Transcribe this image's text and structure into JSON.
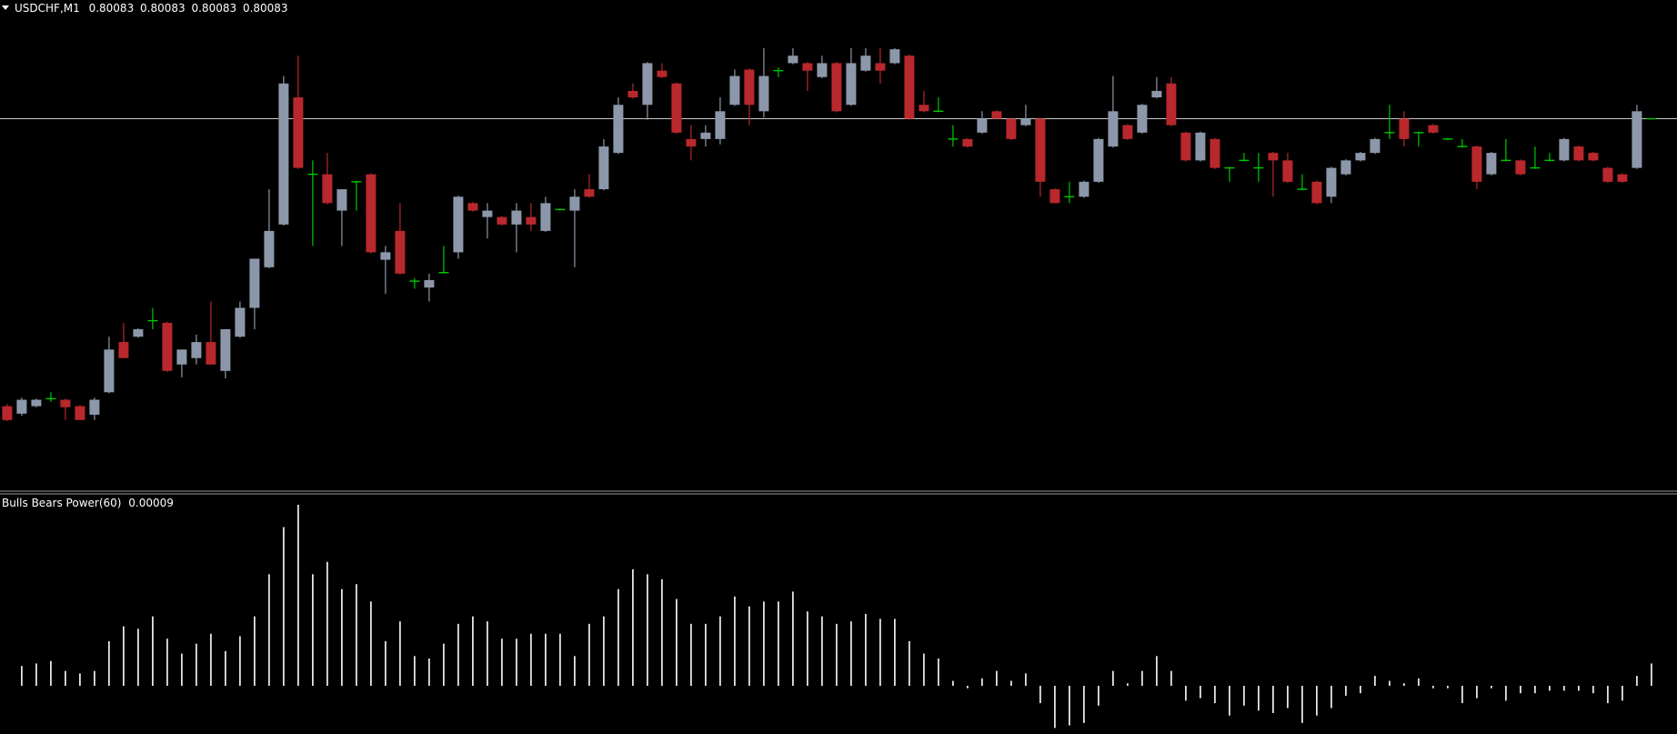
{
  "chart_data": {
    "type": "candlestick",
    "symbol": "USDCHF,M1",
    "header_values": [
      0.80083,
      0.80083,
      0.80083,
      0.80083
    ],
    "price_line": 0.80083,
    "colors": {
      "up": "#8c98aa",
      "down": "#b8282c",
      "doji": "#00c800",
      "price_line": "#c8c8c8"
    },
    "open": [
      0.79814,
      0.79807,
      0.79814,
      0.79821,
      0.7982,
      0.79814,
      0.79806,
      0.79827,
      0.79874,
      0.79879,
      0.79894,
      0.79892,
      0.79853,
      0.79859,
      0.79874,
      0.79847,
      0.79879,
      0.79906,
      0.79944,
      0.79984,
      0.80103,
      0.80031,
      0.80031,
      0.79997,
      0.80024,
      0.80031,
      0.79951,
      0.79978,
      0.79931,
      0.79925,
      0.79939,
      0.79958,
      0.80004,
      0.79991,
      0.79991,
      0.79984,
      0.79991,
      0.79978,
      0.79998,
      0.79997,
      0.80017,
      0.80017,
      0.80051,
      0.80109,
      0.80096,
      0.80128,
      0.80116,
      0.80064,
      0.80064,
      0.80064,
      0.80096,
      0.80129,
      0.8009,
      0.80128,
      0.80135,
      0.80135,
      0.80122,
      0.80135,
      0.80096,
      0.80128,
      0.80135,
      0.80135,
      0.80142,
      0.80096,
      0.8009,
      0.80064,
      0.80064,
      0.8007,
      0.8009,
      0.80083,
      0.80077,
      0.80083,
      0.80017,
      0.8001,
      0.8001,
      0.80024,
      0.80057,
      0.80077,
      0.8007,
      0.80103,
      0.80116,
      0.8007,
      0.80044,
      0.80064,
      0.80037,
      0.80044,
      0.80037,
      0.80051,
      0.80044,
      0.80017,
      0.80024,
      0.8001,
      0.80031,
      0.80044,
      0.80051,
      0.8007,
      0.80083,
      0.8007,
      0.80077,
      0.80064,
      0.80057,
      0.80057,
      0.80031,
      0.80044,
      0.80044,
      0.80037,
      0.80044,
      0.80044,
      0.80057,
      0.80051,
      0.80037,
      0.80031,
      0.80037,
      0.80083
    ],
    "high": [
      0.79816,
      0.79822,
      0.79821,
      0.79827,
      0.79821,
      0.79815,
      0.79822,
      0.79879,
      0.79892,
      0.79887,
      0.79906,
      0.79893,
      0.79867,
      0.79881,
      0.79912,
      0.79886,
      0.79912,
      0.79952,
      0.80017,
      0.80123,
      0.80142,
      0.80044,
      0.80051,
      0.80017,
      0.80025,
      0.80032,
      0.79964,
      0.80004,
      0.79934,
      0.79938,
      0.79964,
      0.80011,
      0.80005,
      0.80004,
      0.79992,
      0.80004,
      0.80004,
      0.8001,
      0.79999,
      0.80017,
      0.80031,
      0.80064,
      0.80103,
      0.80116,
      0.80136,
      0.80135,
      0.80117,
      0.80077,
      0.80077,
      0.80103,
      0.80129,
      0.8013,
      0.80149,
      0.80131,
      0.80149,
      0.80136,
      0.80142,
      0.80136,
      0.80149,
      0.80149,
      0.80149,
      0.80149,
      0.80143,
      0.80109,
      0.80103,
      0.80077,
      0.80065,
      0.8009,
      0.80091,
      0.80084,
      0.80096,
      0.80084,
      0.80018,
      0.80024,
      0.80025,
      0.80065,
      0.80123,
      0.80078,
      0.80097,
      0.80122,
      0.80122,
      0.80071,
      0.80071,
      0.80065,
      0.80038,
      0.80051,
      0.80051,
      0.80052,
      0.80051,
      0.80031,
      0.80025,
      0.80038,
      0.80045,
      0.80052,
      0.80065,
      0.80096,
      0.8009,
      0.80071,
      0.80078,
      0.80065,
      0.80064,
      0.80058,
      0.80052,
      0.80064,
      0.80045,
      0.80057,
      0.80051,
      0.80065,
      0.80058,
      0.80052,
      0.80038,
      0.80032,
      0.80096,
      0.80083
    ],
    "low": [
      0.798,
      0.79805,
      0.79813,
      0.79818,
      0.79801,
      0.79801,
      0.79801,
      0.79826,
      0.79859,
      0.79878,
      0.79886,
      0.79846,
      0.79841,
      0.79853,
      0.79853,
      0.7984,
      0.79878,
      0.79886,
      0.79943,
      0.79983,
      0.80036,
      0.79964,
      0.80003,
      0.79964,
      0.79997,
      0.79957,
      0.79919,
      0.79937,
      0.79924,
      0.79912,
      0.79938,
      0.79952,
      0.79996,
      0.79971,
      0.79983,
      0.79958,
      0.79978,
      0.79977,
      0.79997,
      0.79944,
      0.80009,
      0.80016,
      0.8005,
      0.80102,
      0.80082,
      0.80121,
      0.80069,
      0.80044,
      0.80057,
      0.80059,
      0.80095,
      0.80077,
      0.80084,
      0.80122,
      0.80134,
      0.80109,
      0.80121,
      0.80089,
      0.80095,
      0.80127,
      0.80116,
      0.80134,
      0.80082,
      0.80089,
      0.80089,
      0.80057,
      0.80056,
      0.80069,
      0.80082,
      0.80063,
      0.80076,
      0.8001,
      0.80004,
      0.80004,
      0.80009,
      0.80023,
      0.80056,
      0.80063,
      0.80069,
      0.80102,
      0.80076,
      0.80043,
      0.80043,
      0.80036,
      0.80024,
      0.80043,
      0.80024,
      0.8001,
      0.80023,
      0.80016,
      0.80003,
      0.80004,
      0.8003,
      0.80043,
      0.8005,
      0.80064,
      0.80057,
      0.80057,
      0.80069,
      0.80063,
      0.80056,
      0.80017,
      0.8003,
      0.80043,
      0.8003,
      0.80036,
      0.80043,
      0.80043,
      0.80043,
      0.80043,
      0.80023,
      0.80023,
      0.80036,
      0.80083
    ],
    "close": [
      0.79801,
      0.7982,
      0.7982,
      0.79821,
      0.79813,
      0.79801,
      0.7982,
      0.79867,
      0.79859,
      0.79886,
      0.79894,
      0.79847,
      0.79867,
      0.79874,
      0.79853,
      0.79886,
      0.79906,
      0.79952,
      0.79978,
      0.80116,
      0.80037,
      0.80031,
      0.80004,
      0.80017,
      0.80024,
      0.79958,
      0.79958,
      0.79938,
      0.79931,
      0.79932,
      0.79939,
      0.8001,
      0.79997,
      0.79997,
      0.79984,
      0.79997,
      0.79984,
      0.80004,
      0.79998,
      0.8001,
      0.8001,
      0.80057,
      0.80096,
      0.80103,
      0.80135,
      0.80122,
      0.8007,
      0.80057,
      0.8007,
      0.8009,
      0.80123,
      0.80096,
      0.80123,
      0.80128,
      0.80142,
      0.80128,
      0.80135,
      0.8009,
      0.80135,
      0.80142,
      0.80128,
      0.80148,
      0.80083,
      0.8009,
      0.8009,
      0.80064,
      0.80057,
      0.80083,
      0.80083,
      0.80064,
      0.80083,
      0.80024,
      0.80004,
      0.8001,
      0.80024,
      0.80064,
      0.8009,
      0.80064,
      0.80096,
      0.80109,
      0.80077,
      0.80044,
      0.8007,
      0.80037,
      0.80037,
      0.80044,
      0.80037,
      0.80044,
      0.80024,
      0.80017,
      0.80004,
      0.80037,
      0.80044,
      0.80051,
      0.80064,
      0.8007,
      0.80064,
      0.8007,
      0.8007,
      0.80064,
      0.80057,
      0.80024,
      0.80051,
      0.80044,
      0.80031,
      0.80037,
      0.80044,
      0.80064,
      0.80044,
      0.80044,
      0.80024,
      0.80024,
      0.8009,
      0.80083
    ],
    "indicator": {
      "name": "Bulls Bears Power(60)",
      "value": 9e-05,
      "color": "#ffffff",
      "values": [
        null,
        8e-05,
        9e-05,
        0.0001,
        6e-05,
        5e-05,
        6e-05,
        0.00018,
        0.00024,
        0.00023,
        0.00028,
        0.00019,
        0.00013,
        0.00017,
        0.00021,
        0.00014,
        0.0002,
        0.00028,
        0.00045,
        0.00064,
        0.00073,
        0.00045,
        0.0005,
        0.00039,
        0.00041,
        0.00034,
        0.00018,
        0.00026,
        0.00012,
        0.00011,
        0.00017,
        0.00025,
        0.00028,
        0.00026,
        0.00019,
        0.00019,
        0.00021,
        0.00021,
        0.00021,
        0.00012,
        0.00025,
        0.00028,
        0.00039,
        0.00047,
        0.00045,
        0.00043,
        0.00035,
        0.00025,
        0.00025,
        0.00028,
        0.00036,
        0.00032,
        0.00034,
        0.00034,
        0.00038,
        0.0003,
        0.00028,
        0.00025,
        0.00026,
        0.00029,
        0.00027,
        0.00027,
        0.00018,
        0.00013,
        0.00011,
        2e-05,
        -1e-05,
        3e-05,
        6e-05,
        2e-05,
        5e-05,
        -7e-05,
        -0.00017,
        -0.00016,
        -0.00015,
        -8e-05,
        6e-05,
        1e-05,
        6e-05,
        0.00012,
        6e-05,
        -6e-05,
        -5e-05,
        -7e-05,
        -0.00012,
        -8e-05,
        -0.0001,
        -0.00011,
        -9e-05,
        -0.00015,
        -0.00012,
        -9e-05,
        -4e-05,
        -3e-05,
        4e-05,
        2e-05,
        1e-05,
        3e-05,
        -1e-05,
        -1e-05,
        -7e-05,
        -5e-05,
        -1e-05,
        -6e-05,
        -3e-05,
        -3e-05,
        -2e-05,
        -2e-05,
        -2e-05,
        -3e-05,
        -7e-05,
        -6e-05,
        4e-05,
        9e-05
      ]
    }
  }
}
